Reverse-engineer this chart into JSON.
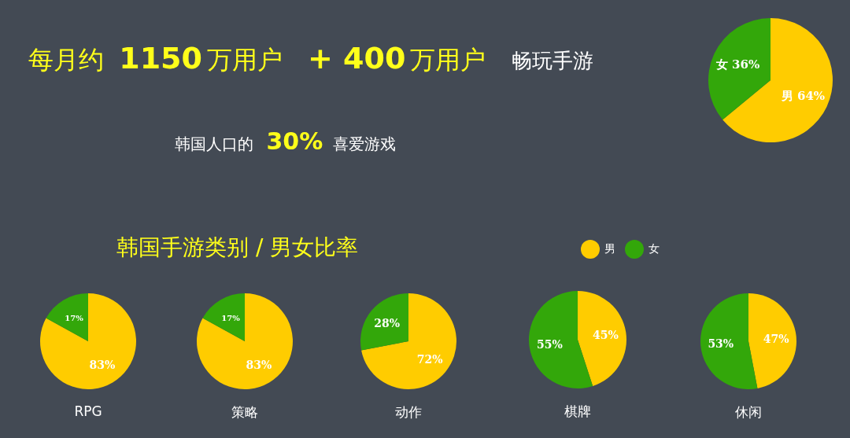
{
  "chart_data": [
    {
      "type": "other",
      "annotations": [
        "每月约 1150万用户",
        "+ 400万用户",
        "畅玩手游",
        "韩国人口的 30% 喜爱游戏"
      ]
    },
    {
      "type": "pie",
      "categories": [
        "男",
        "女"
      ],
      "values": [
        64,
        36
      ],
      "colors": [
        "#ffcc00",
        "#33a70a"
      ],
      "value_labels": [
        "64%",
        "36%"
      ]
    },
    {
      "type": "pie",
      "title": "韩国手游类别 / 男女比率",
      "xlabel": "RPG",
      "categories": [
        null,
        null
      ],
      "values": [
        83,
        17
      ],
      "colors": [
        "#ffcc00",
        "#33a70a"
      ],
      "value_labels": [
        "83%",
        "17%"
      ]
    },
    {
      "type": "pie",
      "xlabel": "策略",
      "categories": [
        null,
        null
      ],
      "values": [
        83,
        17
      ],
      "colors": [
        "#ffcc00",
        "#33a70a"
      ],
      "value_labels": [
        "83%",
        "17%"
      ]
    },
    {
      "type": "pie",
      "xlabel": "动作",
      "categories": [
        null,
        null
      ],
      "values": [
        72,
        28
      ],
      "colors": [
        "#ffcc00",
        "#33a70a"
      ],
      "value_labels": [
        "72%",
        "28%"
      ]
    },
    {
      "type": "pie",
      "legend": "top",
      "xlabel": "棋牌",
      "categories": [
        "男",
        "女"
      ],
      "values": [
        45,
        55
      ],
      "colors": [
        "#ffcc00",
        "#33a70a"
      ],
      "value_labels": [
        "45%",
        "55%"
      ]
    },
    {
      "type": "pie",
      "xlabel": "休闲",
      "categories": [
        null,
        null
      ],
      "values": [
        47,
        53
      ],
      "colors": [
        "#ffcc00",
        "#33a70a"
      ],
      "value_labels": [
        "47%",
        "53%"
      ]
    }
  ]
}
